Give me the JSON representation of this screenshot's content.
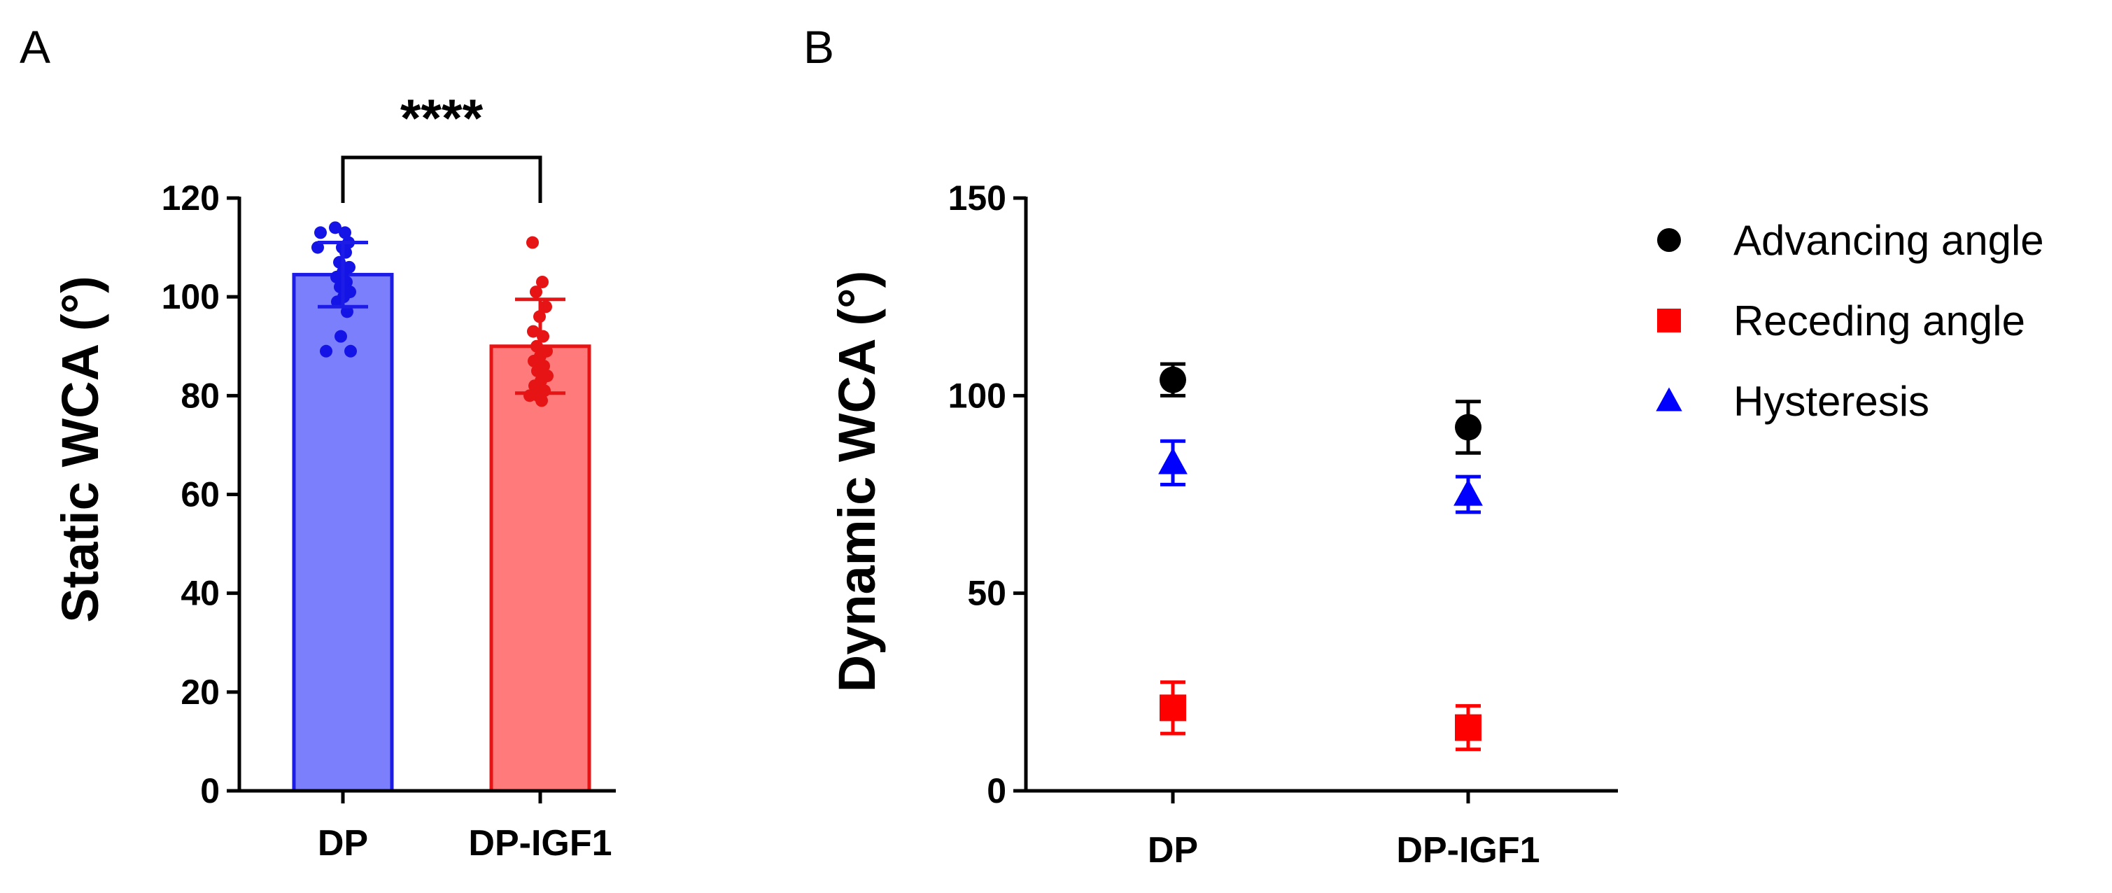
{
  "chart_data": [
    {
      "type": "bar",
      "panel": "A",
      "categories": [
        "DP",
        "DP-IGF1"
      ],
      "ylabel": "Static WCA (°)",
      "ylim": [
        0,
        120
      ],
      "yticks": [
        0,
        20,
        40,
        60,
        80,
        100,
        120
      ],
      "bars": [
        {
          "category": "DP",
          "mean": 104.5,
          "sd": 6.5,
          "fill": "#7b7ffb",
          "edge": "#1c1ce6",
          "dot_color": "#1414e6",
          "points": [
            114,
            113,
            113,
            111,
            110,
            110,
            109,
            107,
            106,
            105,
            104,
            103,
            102,
            101,
            100,
            99,
            97,
            92,
            89,
            89
          ]
        },
        {
          "category": "DP-IGF1",
          "mean": 90,
          "sd": 9.5,
          "fill": "#ff7b7b",
          "edge": "#e61414",
          "dot_color": "#e61414",
          "points": [
            111,
            103,
            101,
            98,
            96,
            93,
            92,
            90,
            89,
            88,
            87,
            86,
            85,
            84,
            83,
            82,
            81,
            80,
            80,
            79
          ]
        }
      ],
      "annotation": "****"
    },
    {
      "type": "scatter",
      "panel": "B",
      "categories": [
        "DP",
        "DP-IGF1"
      ],
      "ylabel": "Dynamic WCA (°)",
      "ylim": [
        0,
        150
      ],
      "yticks": [
        0,
        50,
        100,
        150
      ],
      "legend_position": "top-right",
      "series": [
        {
          "name": "Advancing angle",
          "marker": "circle",
          "color": "#000000",
          "values": [
            104,
            92
          ],
          "errors": [
            4,
            6.5
          ]
        },
        {
          "name": "Receding angle",
          "marker": "square",
          "color": "#ff0000",
          "values": [
            21,
            16
          ],
          "errors": [
            6.5,
            5.5
          ]
        },
        {
          "name": "Hysteresis",
          "marker": "triangle",
          "color": "#0000ff",
          "values": [
            83,
            75
          ],
          "errors": [
            5.5,
            4.5
          ]
        }
      ]
    }
  ]
}
